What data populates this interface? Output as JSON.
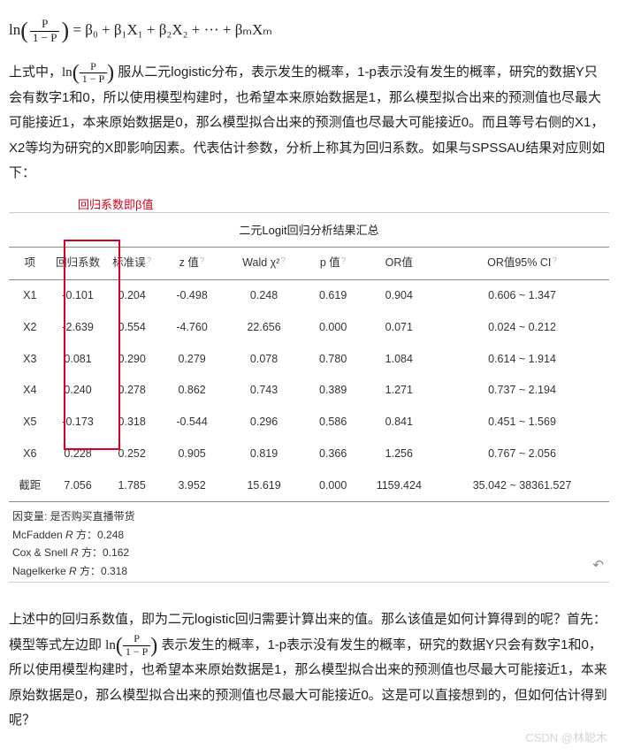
{
  "formula": {
    "lhs_fn": "ln",
    "frac_num": "P",
    "frac_den": "1 − P",
    "rhs": " = β₀ + β₁X₁ + β₂X₂ + ··· + βₘXₘ"
  },
  "para1_pre": "上式中，",
  "para1_math_fn": "ln",
  "para1_math_num": "P",
  "para1_math_den": "1 − P",
  "para1_post": " 服从二元logistic分布，表示发生的概率，1-p表示没有发生的概率，研究的数据Y只会有数字1和0，所以使用模型构建时，也希望本来原始数据是1，那么模型拟合出来的预测值也尽最大可能接近1，本来原始数据是0，那么模型拟合出来的预测值也尽最大可能接近0。而且等号右侧的X1，X2等均为研究的X即影响因素。代表估计参数，分析上称其为回归系数。如果与SPSSAU结果对应则如下：",
  "annot": "回归系数即β值",
  "table": {
    "title": "二元Logit回归分析结果汇总",
    "columns": [
      "项",
      "回归系数",
      "标准误",
      "z 值",
      "Wald χ²",
      "p 值",
      "OR值",
      "OR值95% CI"
    ],
    "help_cols": [
      2,
      3,
      4,
      5,
      7
    ],
    "rows": [
      [
        "X1",
        "-0.101",
        "0.204",
        "-0.498",
        "0.248",
        "0.619",
        "0.904",
        "0.606 ~ 1.347"
      ],
      [
        "X2",
        "-2.639",
        "0.554",
        "-4.760",
        "22.656",
        "0.000",
        "0.071",
        "0.024 ~ 0.212"
      ],
      [
        "X3",
        "0.081",
        "0.290",
        "0.279",
        "0.078",
        "0.780",
        "1.084",
        "0.614 ~ 1.914"
      ],
      [
        "X4",
        "0.240",
        "0.278",
        "0.862",
        "0.743",
        "0.389",
        "1.271",
        "0.737 ~ 2.194"
      ],
      [
        "X5",
        "-0.173",
        "0.318",
        "-0.544",
        "0.296",
        "0.586",
        "0.841",
        "0.451 ~ 1.569"
      ],
      [
        "X6",
        "0.228",
        "0.252",
        "0.905",
        "0.819",
        "0.366",
        "1.256",
        "0.767 ~ 2.056"
      ],
      [
        "截距",
        "7.056",
        "1.785",
        "3.952",
        "15.619",
        "0.000",
        "1159.424",
        "35.042 ~ 38361.527"
      ]
    ],
    "col_widths": [
      "7%",
      "9%",
      "9%",
      "11%",
      "13%",
      "10%",
      "12%",
      "29%"
    ]
  },
  "footnotes": {
    "f1_a": "因变量: 是否购买直播带货",
    "f2_a": "McFadden ",
    "f2_b": "R",
    "f2_c": " 方：0.248",
    "f3_a": "Cox & Snell ",
    "f3_b": "R",
    "f3_c": " 方：0.162",
    "f4_a": "Nagelkerke ",
    "f4_b": "R",
    "f4_c": " 方：0.318"
  },
  "undo_icon": "↶",
  "para3_a": "上述中的回归系数值，即为二元logistic回归需要计算出来的值。那么该值是如何计算得到的呢？首先：模型等式左边即 ",
  "para3_math_fn": "ln",
  "para3_math_num": "P",
  "para3_math_den": "1 − P",
  "para3_b": " 表示发生的概率，1-p表示没有发生的概率，研究的数据Y只会有数字1和0，所以使用模型构建时，也希望本来原始数据是1，那么模型拟合出来的预测值也尽最大可能接近1，本来原始数据是0，那么模型拟合出来的预测值也尽最大可能接近0。这是可以直接想到的，但如何估计得到呢？",
  "watermark": "CSDN @林聪木"
}
